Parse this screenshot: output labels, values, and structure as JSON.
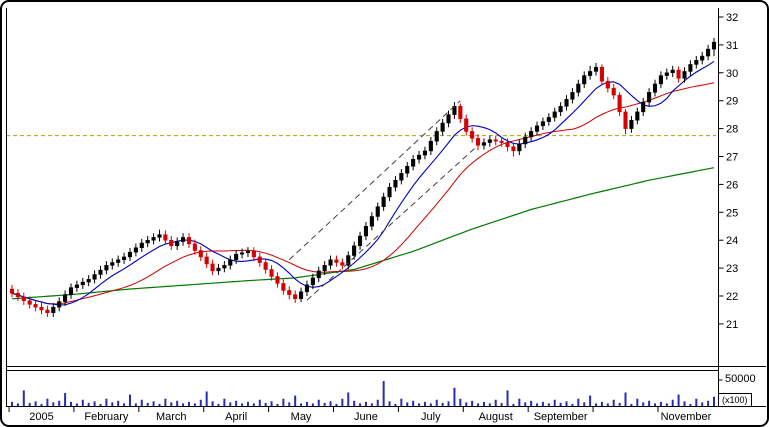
{
  "chart_data": [
    {
      "type": "candlestick",
      "title": "",
      "ylim": [
        20.5,
        32.3
      ],
      "y_ticks": [
        21,
        22,
        23,
        24,
        25,
        26,
        27,
        28,
        29,
        30,
        31,
        32
      ],
      "x_months": [
        {
          "label": "2005",
          "start": 0
        },
        {
          "label": "February",
          "start": 11
        },
        {
          "label": "March",
          "start": 22
        },
        {
          "label": "April",
          "start": 33
        },
        {
          "label": "May",
          "start": 44
        },
        {
          "label": "June",
          "start": 55
        },
        {
          "label": "July",
          "start": 66
        },
        {
          "label": "August",
          "start": 77
        },
        {
          "label": "September",
          "start": 88
        },
        {
          "label": "",
          "start": 99
        },
        {
          "label": "November",
          "start": 110
        }
      ],
      "colors": {
        "up": "#000000",
        "down": "#d40000"
      },
      "overlays": {
        "hline": {
          "value": 27.75,
          "color": "#b0a000",
          "style": "dashed"
        },
        "ma_short": {
          "kind": "sma",
          "period": 8,
          "color": "#0000bb"
        },
        "ma_medium": {
          "kind": "sma",
          "period": 20,
          "color": "#cc0000"
        },
        "ma_long": {
          "kind": "anchors",
          "color": "#007a00",
          "points": [
            [
              0,
              21.9
            ],
            [
              10,
              22.05
            ],
            [
              20,
              22.25
            ],
            [
              30,
              22.4
            ],
            [
              40,
              22.55
            ],
            [
              48,
              22.65
            ],
            [
              58,
              22.95
            ],
            [
              68,
              23.6
            ],
            [
              78,
              24.4
            ],
            [
              88,
              25.1
            ],
            [
              98,
              25.65
            ],
            [
              108,
              26.15
            ],
            [
              119,
              26.6
            ]
          ]
        },
        "channel": [
          {
            "from": [
              47,
              23.3
            ],
            "to": [
              76,
              29.0
            ],
            "color": "#404040",
            "style": "dashed"
          },
          {
            "from": [
              50,
              21.85
            ],
            "to": [
              79,
              27.4
            ],
            "color": "#404040",
            "style": "dashed"
          }
        ]
      },
      "candles": [
        [
          22.25,
          22.4,
          21.95,
          22.1
        ],
        [
          22.1,
          22.25,
          21.82,
          21.97
        ],
        [
          21.97,
          22.12,
          21.68,
          21.83
        ],
        [
          21.83,
          21.98,
          21.55,
          21.7
        ],
        [
          21.7,
          21.85,
          21.45,
          21.6
        ],
        [
          21.6,
          21.75,
          21.35,
          21.5
        ],
        [
          21.5,
          21.65,
          21.25,
          21.4
        ],
        [
          21.4,
          21.75,
          21.25,
          21.6
        ],
        [
          21.6,
          21.95,
          21.45,
          21.8
        ],
        [
          21.8,
          22.2,
          21.65,
          22.05
        ],
        [
          22.05,
          22.45,
          21.9,
          22.3
        ],
        [
          22.3,
          22.55,
          22.15,
          22.4
        ],
        [
          22.4,
          22.65,
          22.25,
          22.5
        ],
        [
          22.5,
          22.75,
          22.35,
          22.6
        ],
        [
          22.6,
          22.92,
          22.45,
          22.77
        ],
        [
          22.77,
          23.08,
          22.62,
          22.93
        ],
        [
          22.93,
          23.25,
          22.78,
          23.1
        ],
        [
          23.1,
          23.35,
          22.95,
          23.2
        ],
        [
          23.2,
          23.45,
          23.05,
          23.3
        ],
        [
          23.3,
          23.55,
          23.15,
          23.4
        ],
        [
          23.4,
          23.72,
          23.25,
          23.57
        ],
        [
          23.57,
          23.88,
          23.42,
          23.73
        ],
        [
          23.73,
          24.05,
          23.58,
          23.9
        ],
        [
          23.9,
          24.15,
          23.75,
          24.0
        ],
        [
          24.0,
          24.25,
          23.85,
          24.1
        ],
        [
          24.1,
          24.38,
          23.95,
          24.2
        ],
        [
          24.2,
          24.35,
          23.85,
          24.0
        ],
        [
          24.0,
          24.15,
          23.65,
          23.8
        ],
        [
          23.8,
          24.1,
          23.65,
          23.95
        ],
        [
          23.95,
          24.25,
          23.8,
          24.1
        ],
        [
          24.1,
          24.25,
          23.72,
          23.87
        ],
        [
          23.87,
          24.02,
          23.48,
          23.63
        ],
        [
          23.63,
          23.78,
          23.25,
          23.4
        ],
        [
          23.4,
          23.55,
          23.0,
          23.15
        ],
        [
          23.15,
          23.3,
          22.75,
          22.9
        ],
        [
          22.9,
          23.15,
          22.75,
          23.0
        ],
        [
          23.0,
          23.25,
          22.85,
          23.1
        ],
        [
          23.1,
          23.45,
          22.95,
          23.3
        ],
        [
          23.3,
          23.65,
          23.15,
          23.5
        ],
        [
          23.5,
          23.7,
          23.35,
          23.55
        ],
        [
          23.55,
          23.75,
          23.4,
          23.6
        ],
        [
          23.6,
          23.75,
          23.25,
          23.4
        ],
        [
          23.4,
          23.55,
          23.05,
          23.2
        ],
        [
          23.2,
          23.35,
          22.8,
          22.95
        ],
        [
          22.95,
          23.1,
          22.55,
          22.7
        ],
        [
          22.7,
          22.85,
          22.3,
          22.45
        ],
        [
          22.45,
          22.6,
          22.05,
          22.2
        ],
        [
          22.2,
          22.35,
          21.88,
          22.05
        ],
        [
          22.05,
          22.2,
          21.75,
          21.9
        ],
        [
          21.9,
          22.3,
          21.78,
          22.15
        ],
        [
          22.15,
          22.55,
          22.0,
          22.4
        ],
        [
          22.4,
          22.8,
          22.25,
          22.65
        ],
        [
          22.65,
          23.05,
          22.5,
          22.9
        ],
        [
          22.9,
          23.25,
          22.75,
          23.1
        ],
        [
          23.1,
          23.45,
          22.95,
          23.3
        ],
        [
          23.3,
          23.45,
          23.05,
          23.2
        ],
        [
          23.2,
          23.35,
          22.95,
          23.1
        ],
        [
          23.1,
          23.6,
          22.95,
          23.45
        ],
        [
          23.45,
          23.95,
          23.3,
          23.8
        ],
        [
          23.8,
          24.3,
          23.65,
          24.15
        ],
        [
          24.15,
          24.65,
          24.0,
          24.5
        ],
        [
          24.5,
          25.0,
          24.35,
          24.85
        ],
        [
          24.85,
          25.35,
          24.7,
          25.2
        ],
        [
          25.2,
          25.7,
          25.05,
          25.55
        ],
        [
          25.55,
          26.05,
          25.4,
          25.9
        ],
        [
          25.9,
          26.3,
          25.75,
          26.15
        ],
        [
          26.15,
          26.55,
          26.0,
          26.4
        ],
        [
          26.4,
          26.8,
          26.25,
          26.65
        ],
        [
          26.65,
          27.05,
          26.5,
          26.9
        ],
        [
          26.9,
          27.2,
          26.75,
          27.05
        ],
        [
          27.05,
          27.35,
          26.9,
          27.2
        ],
        [
          27.2,
          27.7,
          27.05,
          27.55
        ],
        [
          27.55,
          28.05,
          27.4,
          27.9
        ],
        [
          27.9,
          28.35,
          27.75,
          28.2
        ],
        [
          28.2,
          28.65,
          28.05,
          28.5
        ],
        [
          28.5,
          28.95,
          28.35,
          28.8
        ],
        [
          28.8,
          28.9,
          28.2,
          28.35
        ],
        [
          28.35,
          28.5,
          27.75,
          27.9
        ],
        [
          27.9,
          28.05,
          27.5,
          27.65
        ],
        [
          27.65,
          27.8,
          27.22,
          27.4
        ],
        [
          27.4,
          27.65,
          27.25,
          27.5
        ],
        [
          27.5,
          27.75,
          27.35,
          27.6
        ],
        [
          27.6,
          27.75,
          27.4,
          27.55
        ],
        [
          27.55,
          27.7,
          27.35,
          27.5
        ],
        [
          27.5,
          27.65,
          27.18,
          27.35
        ],
        [
          27.35,
          27.5,
          27.0,
          27.2
        ],
        [
          27.2,
          27.6,
          27.05,
          27.45
        ],
        [
          27.45,
          27.85,
          27.3,
          27.7
        ],
        [
          27.7,
          28.05,
          27.55,
          27.9
        ],
        [
          27.9,
          28.25,
          27.75,
          28.1
        ],
        [
          28.1,
          28.4,
          27.95,
          28.25
        ],
        [
          28.25,
          28.55,
          28.1,
          28.4
        ],
        [
          28.4,
          28.75,
          28.25,
          28.6
        ],
        [
          28.6,
          28.95,
          28.45,
          28.8
        ],
        [
          28.8,
          29.2,
          28.65,
          29.05
        ],
        [
          29.05,
          29.45,
          28.9,
          29.3
        ],
        [
          29.3,
          29.75,
          29.15,
          29.6
        ],
        [
          29.6,
          30.05,
          29.45,
          29.9
        ],
        [
          29.9,
          30.25,
          29.75,
          30.05
        ],
        [
          30.05,
          30.35,
          29.9,
          30.2
        ],
        [
          30.2,
          30.3,
          29.55,
          29.7
        ],
        [
          29.7,
          29.85,
          29.3,
          29.45
        ],
        [
          29.45,
          29.6,
          29.05,
          29.2
        ],
        [
          29.2,
          29.3,
          28.45,
          28.6
        ],
        [
          28.6,
          28.7,
          27.8,
          28.0
        ],
        [
          28.0,
          28.45,
          27.85,
          28.3
        ],
        [
          28.3,
          28.75,
          28.15,
          28.6
        ],
        [
          28.6,
          29.1,
          28.45,
          28.95
        ],
        [
          28.95,
          29.45,
          28.8,
          29.3
        ],
        [
          29.3,
          29.75,
          29.15,
          29.6
        ],
        [
          29.6,
          30.05,
          29.45,
          29.9
        ],
        [
          29.9,
          30.15,
          29.75,
          30.0
        ],
        [
          30.0,
          30.25,
          29.85,
          30.1
        ],
        [
          30.1,
          30.22,
          29.65,
          29.8
        ],
        [
          29.8,
          30.2,
          29.65,
          30.05
        ],
        [
          30.05,
          30.45,
          29.9,
          30.3
        ],
        [
          30.3,
          30.6,
          30.15,
          30.45
        ],
        [
          30.45,
          30.75,
          30.3,
          30.6
        ],
        [
          30.6,
          31.0,
          30.45,
          30.85
        ],
        [
          30.85,
          31.25,
          30.6,
          31.1
        ]
      ]
    },
    {
      "type": "bar",
      "title": "volume",
      "ylim": [
        0,
        55000
      ],
      "y_tick_value": 50000,
      "y_tick_label": "50000",
      "unit_label": "(x100)",
      "color": "#2a2ab8",
      "values": [
        8000,
        5000,
        30000,
        6000,
        9000,
        4000,
        14000,
        7000,
        10000,
        25000,
        8000,
        5000,
        12000,
        6000,
        9000,
        4000,
        14000,
        7000,
        10000,
        5000,
        22000,
        5000,
        12000,
        6000,
        9000,
        4000,
        14000,
        7000,
        10000,
        5000,
        8000,
        5000,
        12000,
        28000,
        9000,
        4000,
        14000,
        7000,
        10000,
        5000,
        8000,
        5000,
        12000,
        6000,
        9000,
        4000,
        14000,
        7000,
        20000,
        5000,
        8000,
        5000,
        12000,
        6000,
        9000,
        4000,
        14000,
        26000,
        10000,
        5000,
        8000,
        5000,
        12000,
        48000,
        9000,
        4000,
        14000,
        7000,
        10000,
        5000,
        8000,
        5000,
        12000,
        6000,
        9000,
        35000,
        14000,
        7000,
        10000,
        5000,
        8000,
        5000,
        12000,
        6000,
        30000,
        4000,
        14000,
        7000,
        10000,
        5000,
        8000,
        5000,
        12000,
        6000,
        9000,
        4000,
        14000,
        7000,
        20000,
        5000,
        8000,
        5000,
        12000,
        6000,
        26000,
        4000,
        14000,
        7000,
        10000,
        5000,
        8000,
        5000,
        12000,
        22000,
        9000,
        4000,
        14000,
        7000,
        10000,
        18000
      ]
    }
  ]
}
